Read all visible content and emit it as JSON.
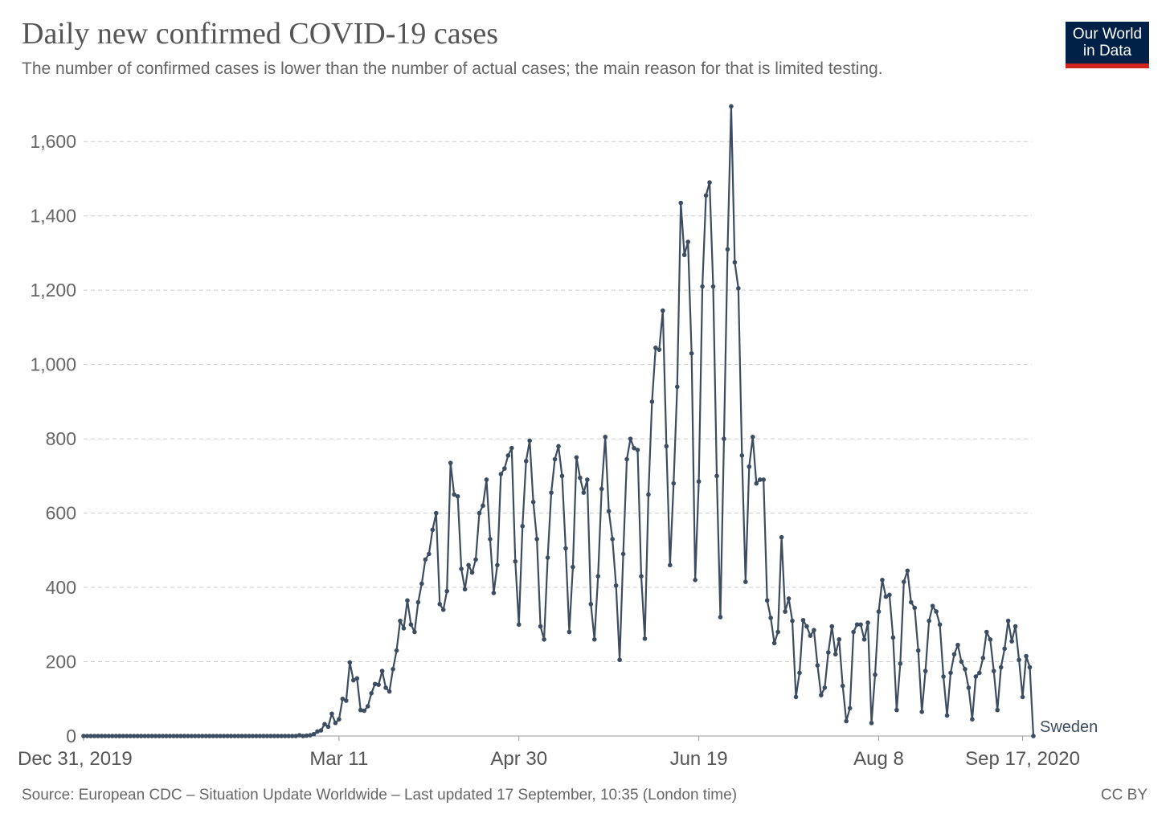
{
  "header": {
    "title": "Daily new confirmed COVID-19 cases",
    "subtitle": "The number of confirmed cases is lower than the number of actual cases; the main reason for that is limited testing."
  },
  "logo": {
    "line1": "Our World",
    "line2": "in Data"
  },
  "footer": {
    "source": "Source: European CDC – Situation Update Worldwide – Last updated 17 September, 10:35 (London time)",
    "license": "CC BY"
  },
  "colors": {
    "series": "#3c4c61",
    "grid": "#cccccc",
    "axis": "#999999",
    "logo_bg": "#002147",
    "logo_bar": "#ce261e"
  },
  "chart_data": {
    "type": "line",
    "x_start": "Dec 31, 2019",
    "x_end": "Sep 17, 2020",
    "x_ticks": [
      {
        "label": "Dec 31, 2019",
        "day": 0
      },
      {
        "label": "Mar 11",
        "day": 71
      },
      {
        "label": "Apr 30",
        "day": 121
      },
      {
        "label": "Jun 19",
        "day": 171
      },
      {
        "label": "Aug 8",
        "day": 221
      },
      {
        "label": "Sep 17, 2020",
        "day": 261
      }
    ],
    "ylim": [
      0,
      1700
    ],
    "y_ticks": [
      0,
      200,
      400,
      600,
      800,
      1000,
      1200,
      1400,
      1600
    ],
    "grid": true,
    "series": [
      {
        "name": "Sweden",
        "values": [
          0,
          0,
          0,
          0,
          0,
          0,
          0,
          0,
          0,
          0,
          0,
          0,
          0,
          0,
          0,
          0,
          0,
          0,
          0,
          0,
          0,
          0,
          0,
          0,
          0,
          0,
          0,
          0,
          0,
          0,
          0,
          0,
          0,
          0,
          0,
          0,
          0,
          0,
          0,
          0,
          0,
          0,
          0,
          0,
          0,
          0,
          0,
          0,
          0,
          0,
          0,
          0,
          0,
          0,
          0,
          0,
          0,
          0,
          0,
          0,
          2,
          0,
          1,
          2,
          5,
          12,
          15,
          32,
          25,
          60,
          35,
          45,
          100,
          95,
          198,
          150,
          155,
          70,
          68,
          80,
          115,
          140,
          138,
          175,
          130,
          120,
          180,
          230,
          310,
          290,
          365,
          300,
          280,
          360,
          410,
          475,
          490,
          555,
          600,
          355,
          340,
          390,
          735,
          650,
          645,
          450,
          395,
          460,
          440,
          475,
          600,
          620,
          690,
          530,
          385,
          460,
          705,
          720,
          755,
          775,
          470,
          300,
          565,
          740,
          795,
          630,
          530,
          295,
          260,
          480,
          655,
          745,
          780,
          700,
          505,
          280,
          455,
          750,
          695,
          655,
          690,
          355,
          260,
          430,
          665,
          805,
          605,
          530,
          405,
          205,
          490,
          745,
          800,
          775,
          770,
          430,
          262,
          650,
          900,
          1045,
          1040,
          1145,
          780,
          460,
          680,
          940,
          1435,
          1295,
          1330,
          1030,
          420,
          685,
          1210,
          1455,
          1490,
          1210,
          700,
          320,
          800,
          1310,
          1695,
          1275,
          1205,
          755,
          415,
          725,
          805,
          680,
          690,
          690,
          365,
          318,
          250,
          280,
          535,
          335,
          370,
          310,
          105,
          170,
          312,
          295,
          270,
          285,
          190,
          110,
          130,
          225,
          295,
          220,
          260,
          135,
          40,
          75,
          280,
          300,
          300,
          260,
          305,
          35,
          165,
          335,
          420,
          375,
          380,
          265,
          70,
          195,
          415,
          445,
          360,
          345,
          230,
          65,
          175,
          310,
          350,
          335,
          300,
          160,
          55,
          170,
          220,
          245,
          200,
          180,
          130,
          45,
          160,
          170,
          210,
          280,
          260,
          175,
          70,
          185,
          235,
          310,
          255,
          295,
          205,
          105,
          215,
          185,
          0
        ]
      }
    ]
  }
}
